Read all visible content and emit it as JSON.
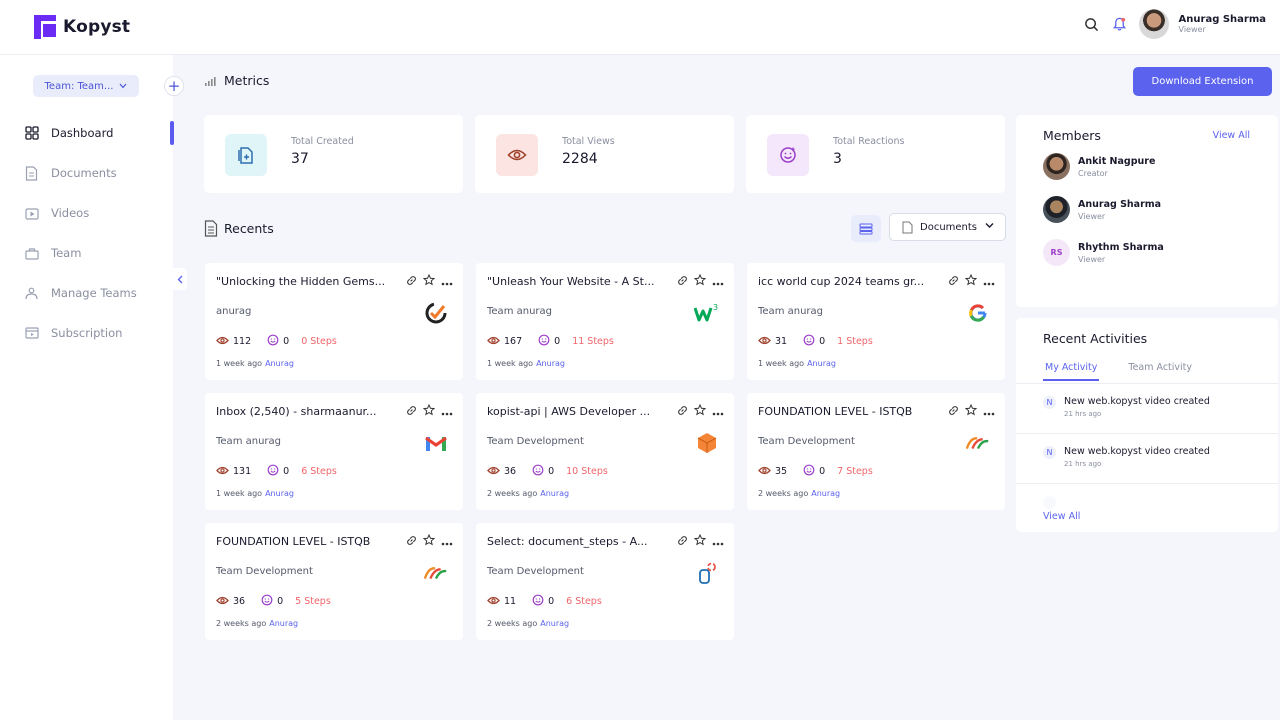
{
  "app": {
    "name": "Kopyst"
  },
  "user": {
    "name": "Anurag Sharma",
    "role": "Viewer"
  },
  "sidebar": {
    "team_select": "Team: Team...",
    "items": [
      {
        "label": "Dashboard",
        "icon": "dashboard-icon",
        "active": true
      },
      {
        "label": "Documents",
        "icon": "document-icon"
      },
      {
        "label": "Videos",
        "icon": "video-icon"
      },
      {
        "label": "Team",
        "icon": "team-icon"
      },
      {
        "label": "Manage Teams",
        "icon": "manage-teams-icon"
      },
      {
        "label": "Subscription",
        "icon": "subscription-icon"
      }
    ]
  },
  "metrics": {
    "title": "Metrics",
    "download_label": "Download Extension",
    "cards": [
      {
        "label": "Total Created",
        "value": "37",
        "icon": "document-add-icon",
        "color": "#d9f3f7"
      },
      {
        "label": "Total Views",
        "value": "2284",
        "icon": "eye-icon",
        "color": "#fbe3e0"
      },
      {
        "label": "Total Reactions",
        "value": "3",
        "icon": "smiley-icon",
        "color": "#f3e6fb"
      }
    ]
  },
  "recents": {
    "title": "Recents",
    "type_select": "Documents",
    "cards": [
      {
        "title": "\"Unlocking the Hidden Gems...",
        "space": "anurag",
        "views": "112",
        "reactions": "0",
        "steps": "0 Steps",
        "time": "1 week ago",
        "author": "Anurag",
        "logo": "checkmark-logo-icon"
      },
      {
        "title": "\"Unleash Your Website - A St...",
        "space": "Team anurag",
        "views": "167",
        "reactions": "0",
        "steps": "11 Steps",
        "time": "1 week ago",
        "author": "Anurag",
        "logo": "w3-logo-icon"
      },
      {
        "title": "icc world cup 2024 teams gr...",
        "space": "Team anurag",
        "views": "31",
        "reactions": "0",
        "steps": "1 Steps",
        "time": "1 week ago",
        "author": "Anurag",
        "logo": "google-logo-icon"
      },
      {
        "title": "Inbox (2,540) - sharmaanur...",
        "space": "Team anurag",
        "views": "131",
        "reactions": "0",
        "steps": "6 Steps",
        "time": "1 week ago",
        "author": "Anurag",
        "logo": "gmail-logo-icon"
      },
      {
        "title": "kopist-api | AWS Developer ...",
        "space": "Team Development",
        "views": "36",
        "reactions": "0",
        "steps": "10 Steps",
        "time": "2 weeks ago",
        "author": "Anurag",
        "logo": "aws-cube-logo-icon"
      },
      {
        "title": "FOUNDATION LEVEL - ISTQB",
        "space": "Team Development",
        "views": "35",
        "reactions": "0",
        "steps": "7 Steps",
        "time": "2 weeks ago",
        "author": "Anurag",
        "logo": "istqb-logo-icon"
      },
      {
        "title": "FOUNDATION LEVEL - ISTQB",
        "space": "Team Development",
        "views": "36",
        "reactions": "0",
        "steps": "5 Steps",
        "time": "2 weeks ago",
        "author": "Anurag",
        "logo": "istqb-logo-icon"
      },
      {
        "title": "Select: document_steps - A...",
        "space": "Team Development",
        "views": "11",
        "reactions": "0",
        "steps": "6 Steps",
        "time": "2 weeks ago",
        "author": "Anurag",
        "logo": "database-logo-icon"
      }
    ]
  },
  "members": {
    "title": "Members",
    "view_all": "View All",
    "list": [
      {
        "name": "Ankit Nagpure",
        "role": "Creator",
        "initials": ""
      },
      {
        "name": "Anurag Sharma",
        "role": "Viewer",
        "initials": ""
      },
      {
        "name": "Rhythm Sharma",
        "role": "Viewer",
        "initials": "RS"
      }
    ]
  },
  "activities": {
    "title": "Recent Activities",
    "tabs": [
      "My Activity",
      "Team Activity"
    ],
    "items": [
      {
        "initial": "N",
        "text": "New web.kopyst video created",
        "time": "21 hrs ago"
      },
      {
        "initial": "N",
        "text": "New web.kopyst video created",
        "time": "21 hrs ago"
      }
    ],
    "view_all": "View All"
  },
  "colors": {
    "accent": "#5b63ee",
    "brand": "#6a2cf5",
    "steps": "#f0656a"
  }
}
